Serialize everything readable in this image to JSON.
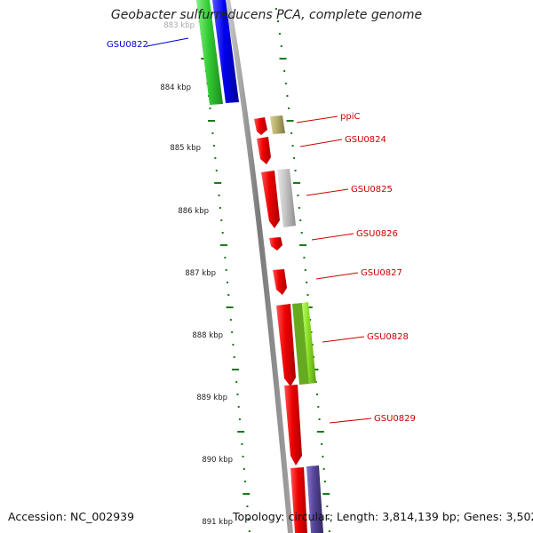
{
  "title": "Geobacter sulfurreducens PCA, complete genome",
  "footer": {
    "accession": "Accession: NC_002939",
    "topology": "Topology: circular; Length: 3,814,139 bp; Genes: 3,502"
  },
  "colors": {
    "backbone": "#8a8a8a",
    "tick": "#1a7a1a",
    "gene_label": "#cc0000",
    "selected_label": "#0000cc",
    "cds_red": "#ee0000",
    "cds_green": "#33cc33",
    "cds_blue": "#0000ee",
    "cds_olive": "#b5ad6a",
    "cds_gray": "#c4c4c4",
    "cds_lime": "#88dd22",
    "cds_purple": "#554499"
  },
  "kbp_labels": [
    "883 kbp",
    "884 kbp",
    "885 kbp",
    "886 kbp",
    "887 kbp",
    "888 kbp",
    "889 kbp",
    "890 kbp",
    "891 kbp"
  ],
  "genes": [
    {
      "name": "GSU0822",
      "selected": true
    },
    {
      "name": "ppiC",
      "selected": false
    },
    {
      "name": "GSU0824",
      "selected": false
    },
    {
      "name": "GSU0825",
      "selected": false
    },
    {
      "name": "GSU0826",
      "selected": false
    },
    {
      "name": "GSU0827",
      "selected": false
    },
    {
      "name": "GSU0828",
      "selected": false
    },
    {
      "name": "GSU0829",
      "selected": false
    }
  ]
}
